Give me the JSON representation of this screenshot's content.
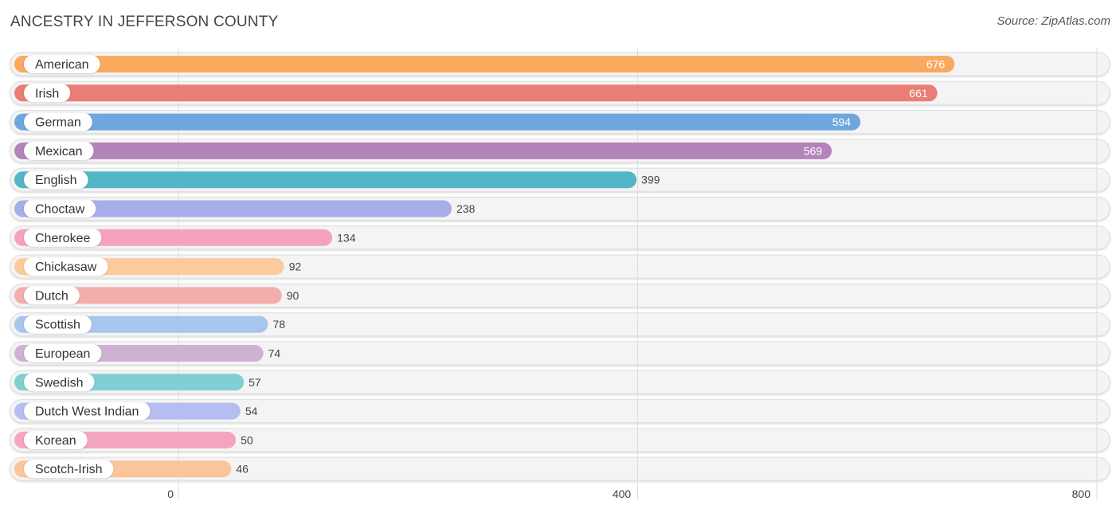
{
  "header": {
    "title": "ANCESTRY IN JEFFERSON COUNTY",
    "source": "Source: ZipAtlas.com"
  },
  "chart_data": {
    "type": "bar",
    "orientation": "horizontal",
    "title": "ANCESTRY IN JEFFERSON COUNTY",
    "xlabel": "",
    "ylabel": "",
    "xlim": [
      0,
      800
    ],
    "xticks": [
      0,
      400,
      800
    ],
    "grid": true,
    "categories": [
      "American",
      "Irish",
      "German",
      "Mexican",
      "English",
      "Choctaw",
      "Cherokee",
      "Chickasaw",
      "Dutch",
      "Scottish",
      "European",
      "Swedish",
      "Dutch West Indian",
      "Korean",
      "Scotch-Irish"
    ],
    "values": [
      676,
      661,
      594,
      569,
      399,
      238,
      134,
      92,
      90,
      78,
      74,
      57,
      54,
      50,
      46
    ],
    "colors": [
      "#f9aa5f",
      "#ea7d76",
      "#6fa6de",
      "#b384b9",
      "#52b6c6",
      "#a7aee8",
      "#f5a3bc",
      "#fccb9c",
      "#f2aeab",
      "#a6c6ec",
      "#cfb1d4",
      "#82cfd3",
      "#b6bdf0",
      "#f5a6bf",
      "#fbc59b"
    ]
  }
}
